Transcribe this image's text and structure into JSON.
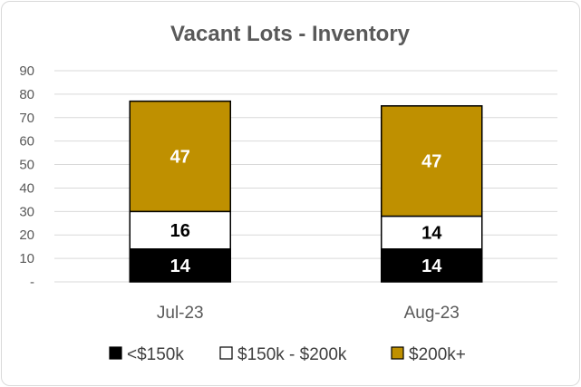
{
  "chart_data": {
    "type": "bar",
    "stacked": true,
    "title": "Vacant Lots - Inventory",
    "categories": [
      "Jul-23",
      "Aug-23"
    ],
    "series": [
      {
        "name": "<$150k",
        "values": [
          14,
          14
        ],
        "color": "#000000",
        "label_color": "#ffffff"
      },
      {
        "name": "$150k - $200k",
        "values": [
          16,
          14
        ],
        "color": "#ffffff",
        "label_color": "#000000"
      },
      {
        "name": "$200k+",
        "values": [
          47,
          47
        ],
        "color": "#bf9000",
        "label_color": "#ffffff"
      }
    ],
    "ylim": [
      0,
      90
    ],
    "yticks": [
      0,
      10,
      20,
      30,
      40,
      50,
      60,
      70,
      80,
      90
    ],
    "ytick_labels": [
      "-",
      "10",
      "20",
      "30",
      "40",
      "50",
      "60",
      "70",
      "80",
      "90"
    ],
    "grid": true,
    "legend_position": "bottom"
  }
}
